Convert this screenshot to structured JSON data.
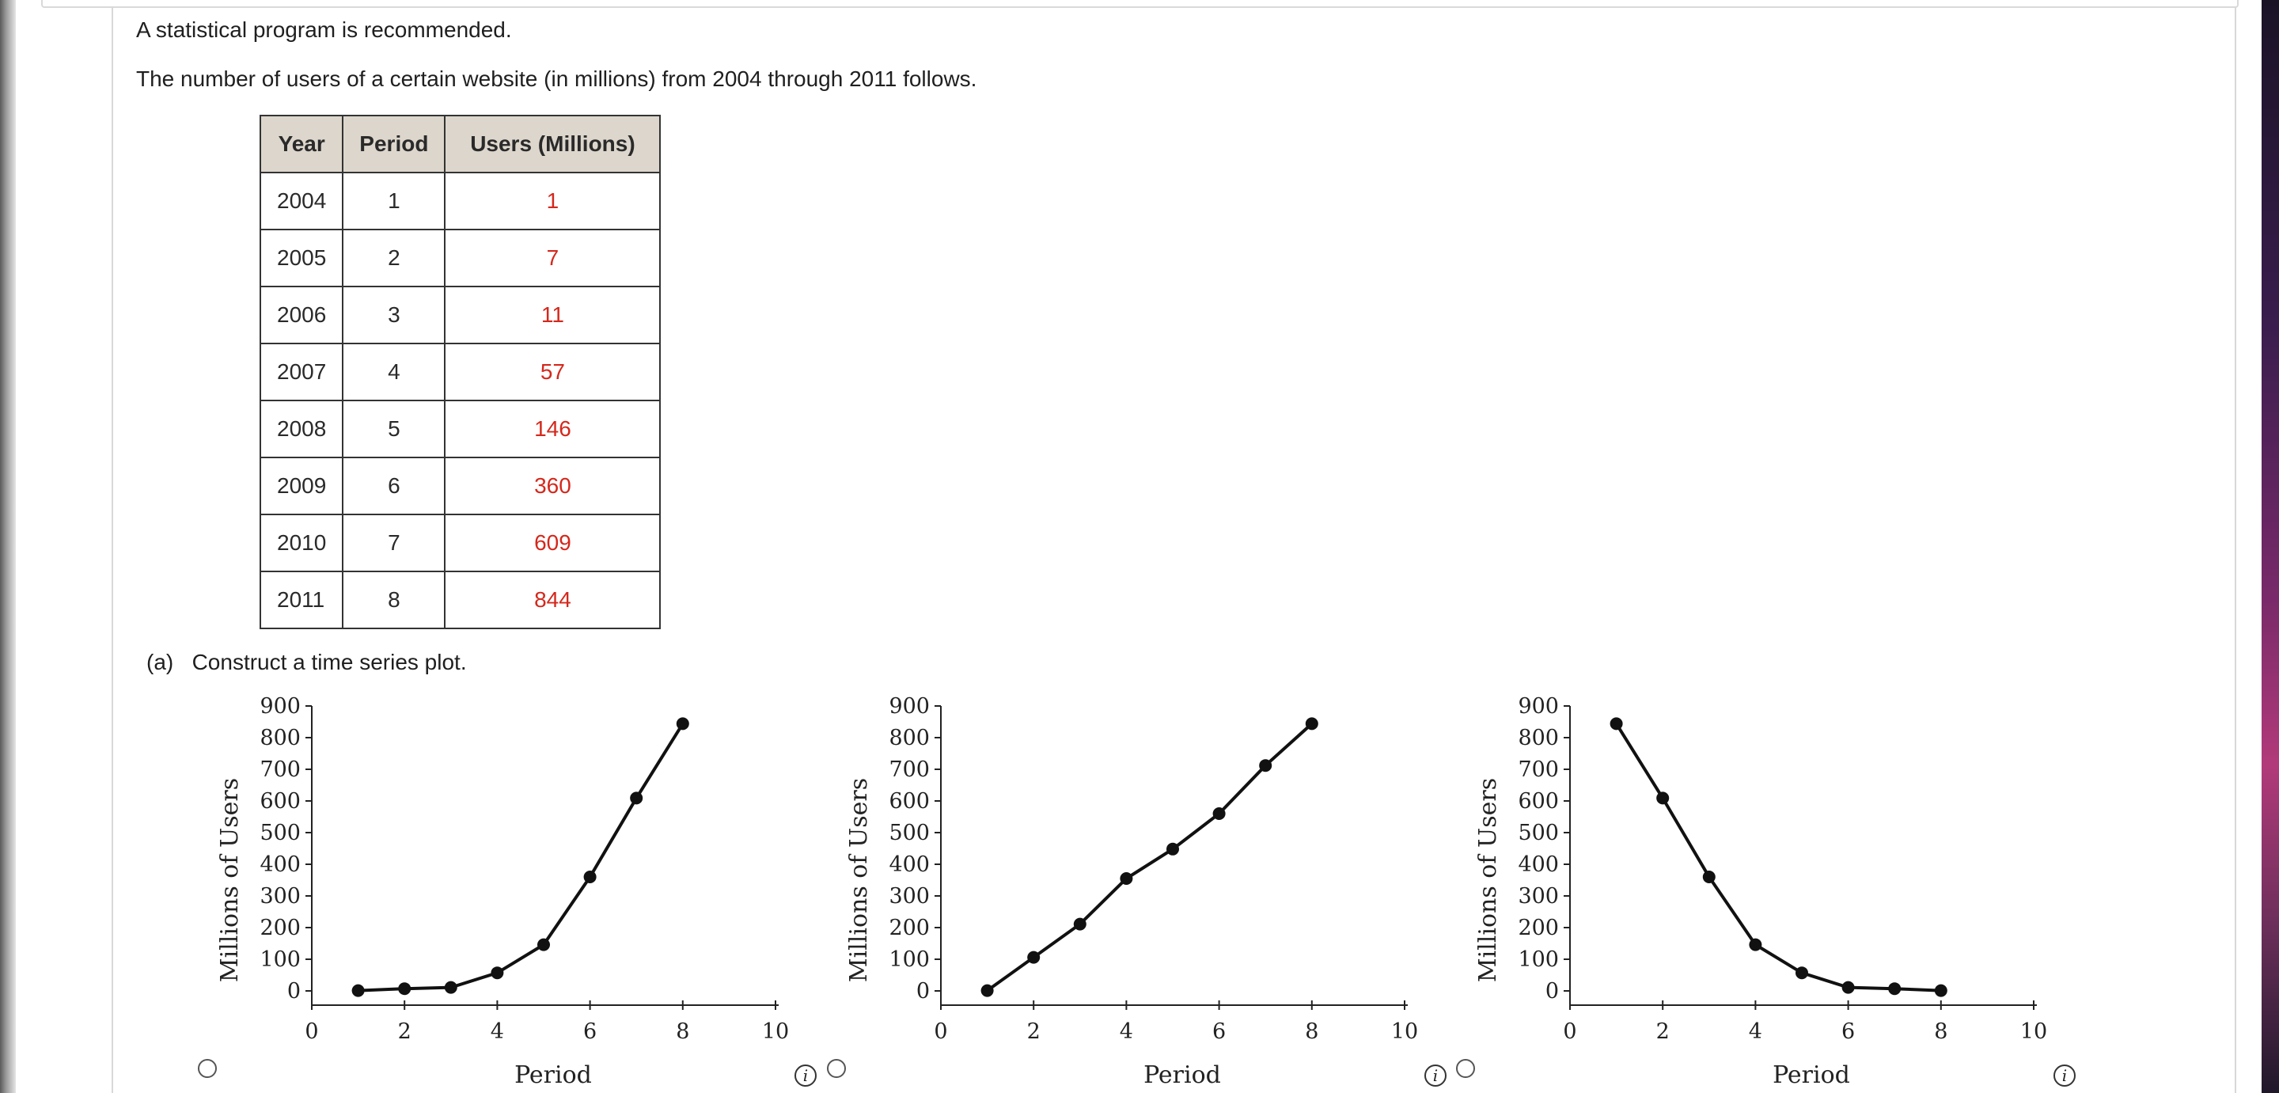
{
  "intro": {
    "note": "A statistical program is recommended.",
    "description": "The number of users of a certain website (in millions) from 2004 through 2011 follows."
  },
  "table": {
    "headers": [
      "Year",
      "Period",
      "Users (Millions)"
    ],
    "rows": [
      [
        "2004",
        "1",
        "1"
      ],
      [
        "2005",
        "2",
        "7"
      ],
      [
        "2006",
        "3",
        "11"
      ],
      [
        "2007",
        "4",
        "57"
      ],
      [
        "2008",
        "5",
        "146"
      ],
      [
        "2009",
        "6",
        "360"
      ],
      [
        "2010",
        "7",
        "609"
      ],
      [
        "2011",
        "8",
        "844"
      ]
    ],
    "value_color": "#d4281c"
  },
  "part_a": {
    "label": "(a)",
    "prompt": "Construct a time series plot."
  },
  "chart_data": [
    {
      "type": "line",
      "xlabel": "Period",
      "ylabel": "Millions of Users",
      "xlim": [
        0,
        10
      ],
      "ylim": [
        0,
        900
      ],
      "xticks": [
        0,
        2,
        4,
        6,
        8,
        10
      ],
      "yticks": [
        0,
        100,
        200,
        300,
        400,
        500,
        600,
        700,
        800,
        900
      ],
      "x": [
        1,
        2,
        3,
        4,
        5,
        6,
        7,
        8
      ],
      "y": [
        1,
        7,
        11,
        57,
        146,
        360,
        609,
        844
      ]
    },
    {
      "type": "line",
      "xlabel": "Period",
      "ylabel": "Millions of Users",
      "xlim": [
        0,
        10
      ],
      "ylim": [
        0,
        900
      ],
      "xticks": [
        0,
        2,
        4,
        6,
        8,
        10
      ],
      "yticks": [
        0,
        100,
        200,
        300,
        400,
        500,
        600,
        700,
        800,
        900
      ],
      "x": [
        1,
        2,
        3,
        4,
        5,
        6,
        7,
        8
      ],
      "y": [
        1,
        106,
        211,
        355,
        448,
        560,
        712,
        844
      ]
    },
    {
      "type": "line",
      "xlabel": "Period",
      "ylabel": "Millions of Users",
      "xlim": [
        0,
        10
      ],
      "ylim": [
        0,
        900
      ],
      "xticks": [
        0,
        2,
        4,
        6,
        8,
        10
      ],
      "yticks": [
        0,
        100,
        200,
        300,
        400,
        500,
        600,
        700,
        800,
        900
      ],
      "x": [
        1,
        2,
        3,
        4,
        5,
        6,
        7,
        8
      ],
      "y": [
        844,
        609,
        360,
        146,
        57,
        11,
        7,
        1
      ]
    }
  ],
  "choices": [
    {
      "radio_icon": "radio-button",
      "info_icon": "info-icon",
      "info_glyph": "i"
    },
    {
      "radio_icon": "radio-button",
      "info_icon": "info-icon",
      "info_glyph": "i"
    },
    {
      "radio_icon": "radio-button",
      "info_icon": "info-icon",
      "info_glyph": "i"
    }
  ]
}
